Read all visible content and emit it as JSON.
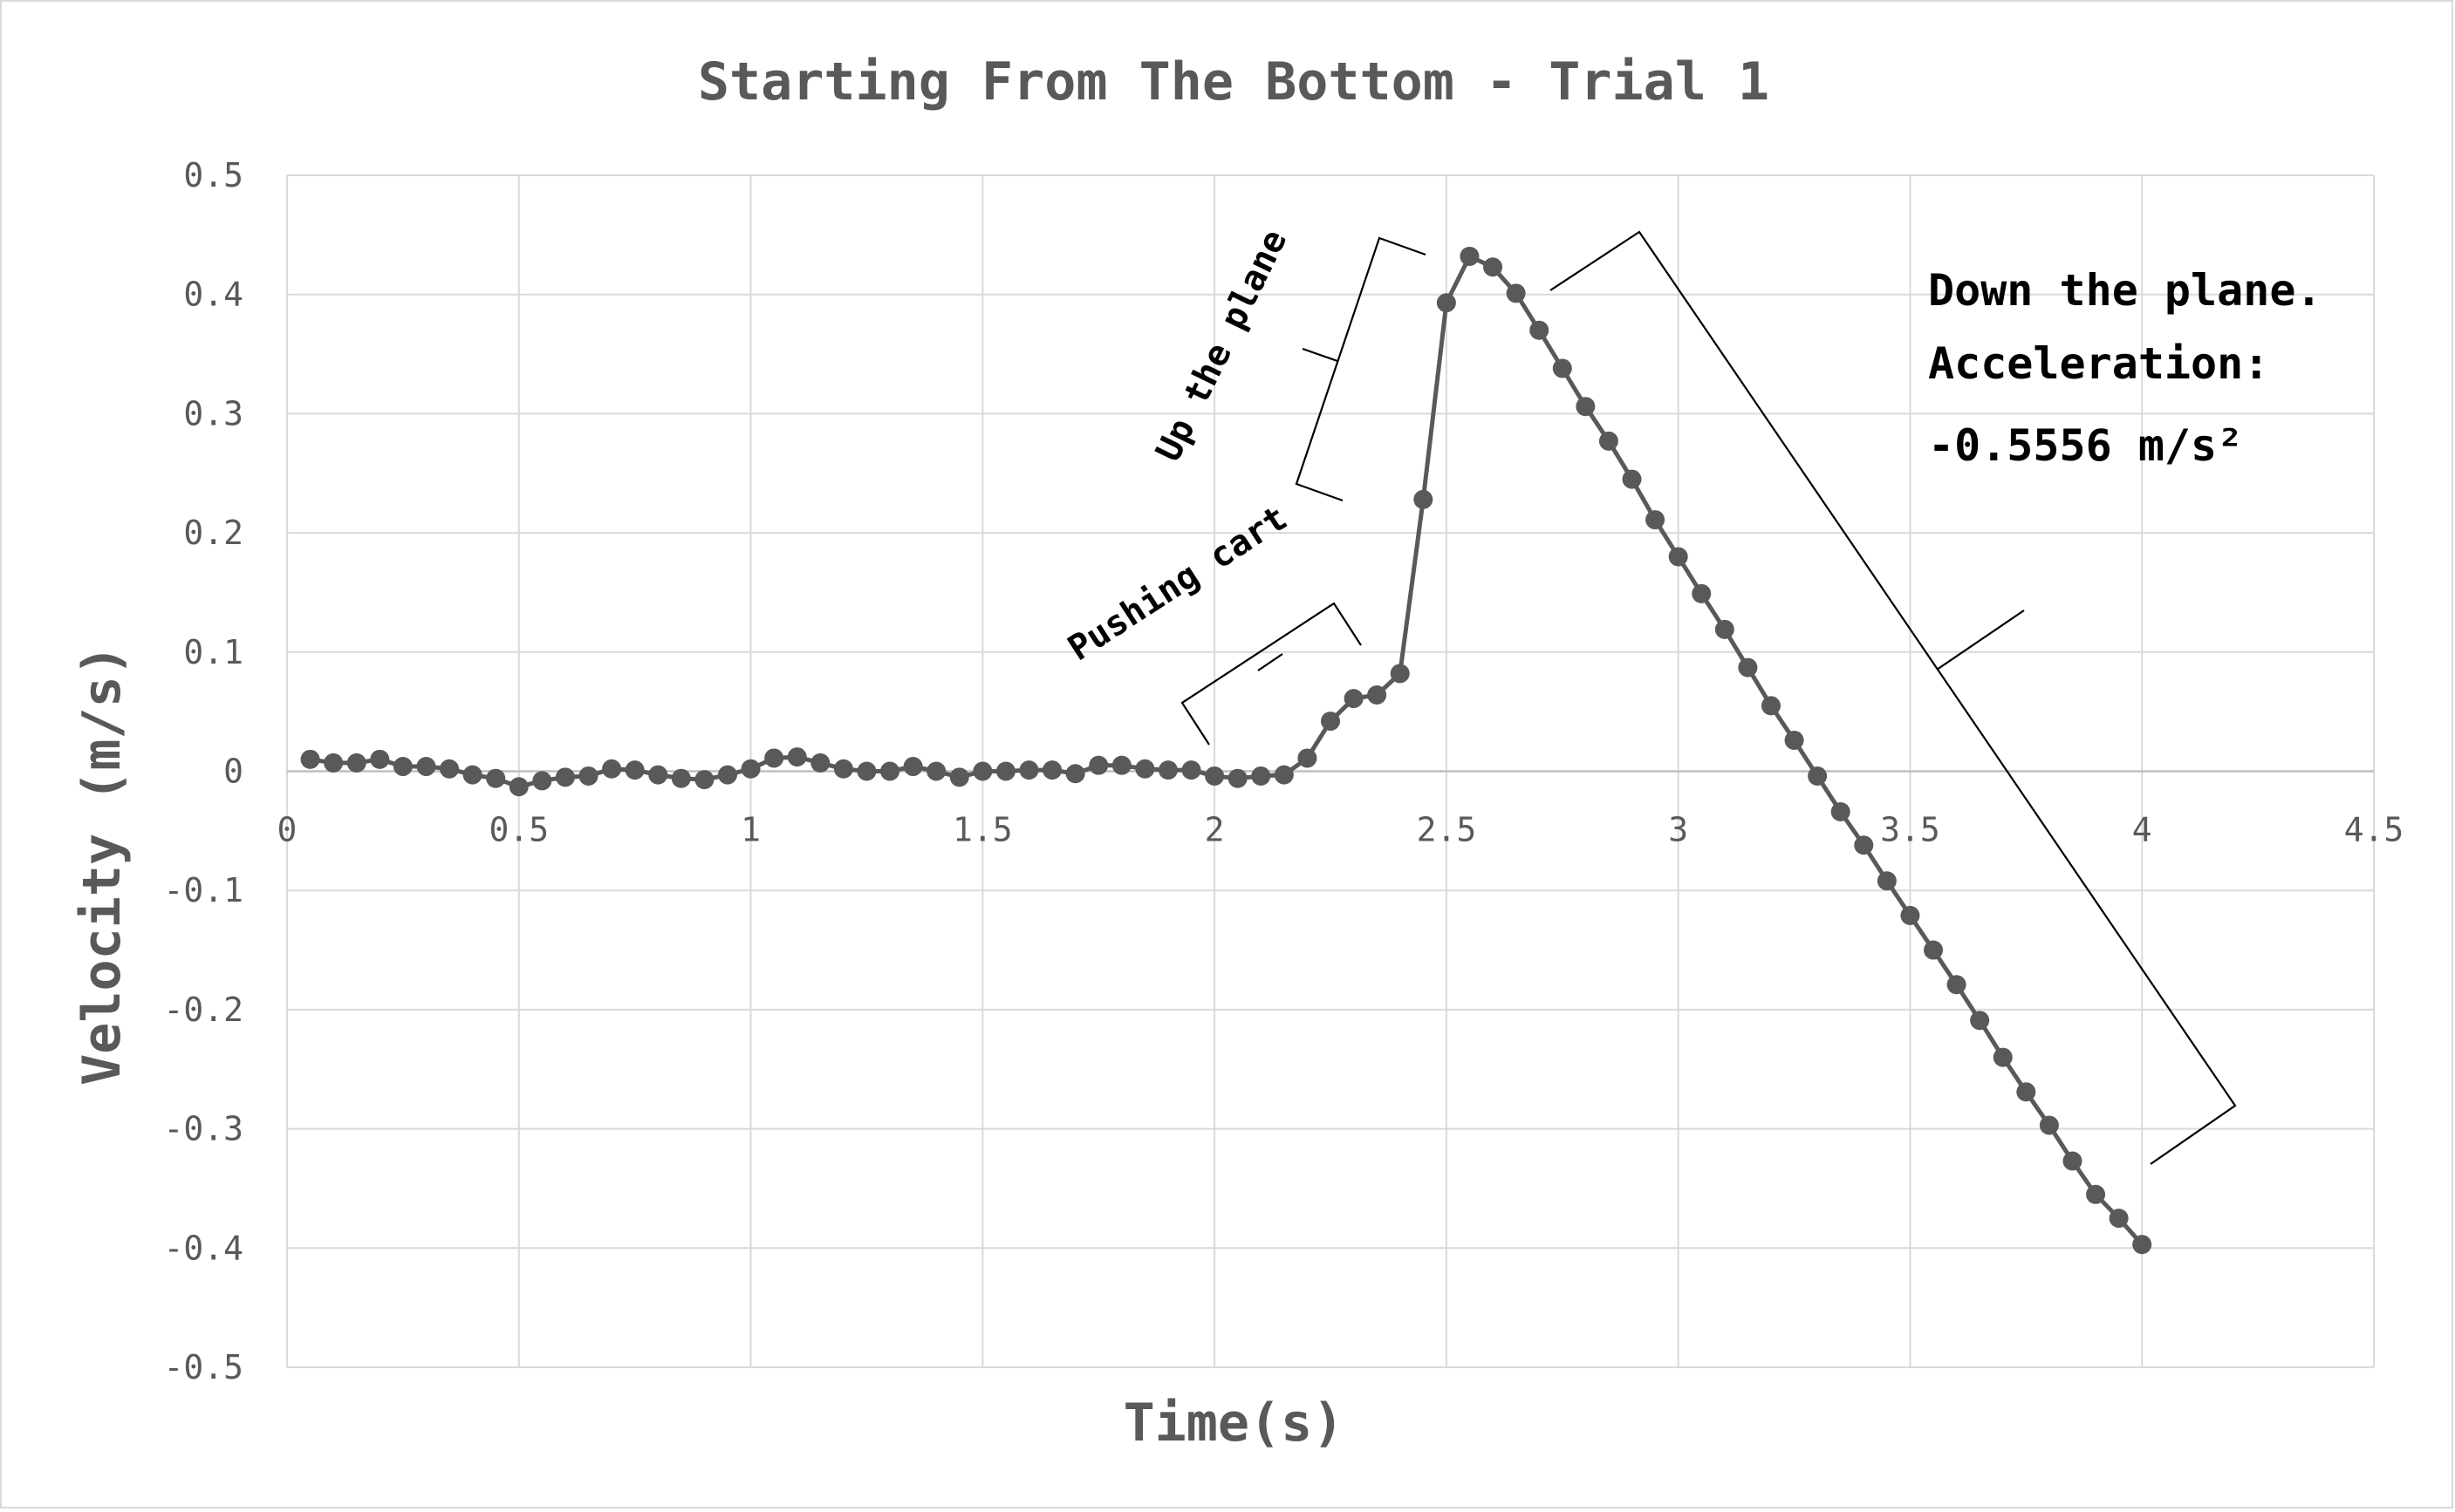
{
  "chart_data": {
    "type": "line",
    "title": "Starting From The Bottom - Trial 1",
    "xlabel": "Time(s)",
    "ylabel": "Velocity (m/s)",
    "xlim": [
      0,
      4.5
    ],
    "ylim": [
      -0.5,
      0.5
    ],
    "x_ticks": [
      "0",
      "0.5",
      "1",
      "1.5",
      "2",
      "2.5",
      "3",
      "3.5",
      "4",
      "4.5"
    ],
    "y_ticks": [
      "0.5",
      "0.4",
      "0.3",
      "0.2",
      "0.1",
      "0",
      "-0.1",
      "-0.2",
      "-0.3",
      "-0.4",
      "-0.5"
    ],
    "grid": true,
    "legend": "none",
    "colors": {
      "series": "#595959",
      "grid": "#d9d9d9",
      "text": "#595959",
      "annotation": "#000000"
    },
    "series": [
      {
        "x": [
          0.05,
          0.1,
          0.15,
          0.2,
          0.25,
          0.3,
          0.35,
          0.4,
          0.45,
          0.5,
          0.55,
          0.6,
          0.65,
          0.7,
          0.75,
          0.8,
          0.85,
          0.9,
          0.95,
          1.0,
          1.05,
          1.1,
          1.15,
          1.2,
          1.25,
          1.3,
          1.35,
          1.4,
          1.45,
          1.5,
          1.55,
          1.6,
          1.65,
          1.7,
          1.75,
          1.8,
          1.85,
          1.9,
          1.95,
          2.0,
          2.05,
          2.1,
          2.15,
          2.2,
          2.25,
          2.3,
          2.35,
          2.4,
          2.45,
          2.5,
          2.55,
          2.6,
          2.65,
          2.7,
          2.75,
          2.8,
          2.85,
          2.9,
          2.95,
          3.0,
          3.05,
          3.1,
          3.15,
          3.2,
          3.25,
          3.3,
          3.35,
          3.4,
          3.45,
          3.5,
          3.55,
          3.6,
          3.65,
          3.7,
          3.75,
          3.8,
          3.85,
          3.9,
          3.95,
          4.0
        ],
        "values": [
          0.01,
          0.007,
          0.007,
          0.01,
          0.004,
          0.004,
          0.002,
          -0.003,
          -0.006,
          -0.013,
          -0.008,
          -0.005,
          -0.004,
          0.002,
          0.001,
          -0.003,
          -0.006,
          -0.007,
          -0.003,
          0.002,
          0.011,
          0.012,
          0.007,
          0.002,
          0.0,
          0.0,
          0.004,
          0.0,
          -0.005,
          0.0,
          0.0,
          0.001,
          0.001,
          -0.002,
          0.005,
          0.005,
          0.002,
          0.001,
          0.001,
          -0.004,
          -0.006,
          -0.004,
          -0.003,
          0.011,
          0.042,
          0.061,
          0.064,
          0.082,
          0.228,
          0.393,
          0.432,
          0.423,
          0.401,
          0.37,
          0.338,
          0.306,
          0.277,
          0.245,
          0.211,
          0.18,
          0.149,
          0.119,
          0.087,
          0.055,
          0.026,
          -0.004,
          -0.034,
          -0.062,
          -0.092,
          -0.121,
          -0.15,
          -0.179,
          -0.209,
          -0.24,
          -0.269,
          -0.297,
          -0.327,
          -0.355,
          -0.375,
          -0.397
        ]
      }
    ],
    "annotations": [
      {
        "label": "Pushing cart",
        "x_range": [
          2.0,
          2.3
        ]
      },
      {
        "label": "Up the plane",
        "x_range": [
          2.4,
          2.55
        ]
      },
      {
        "label_lines": [
          "Down the plane.",
          "Acceleration:",
          "-0.5556 m/s²"
        ],
        "x_range": [
          2.6,
          4.2
        ]
      }
    ]
  }
}
